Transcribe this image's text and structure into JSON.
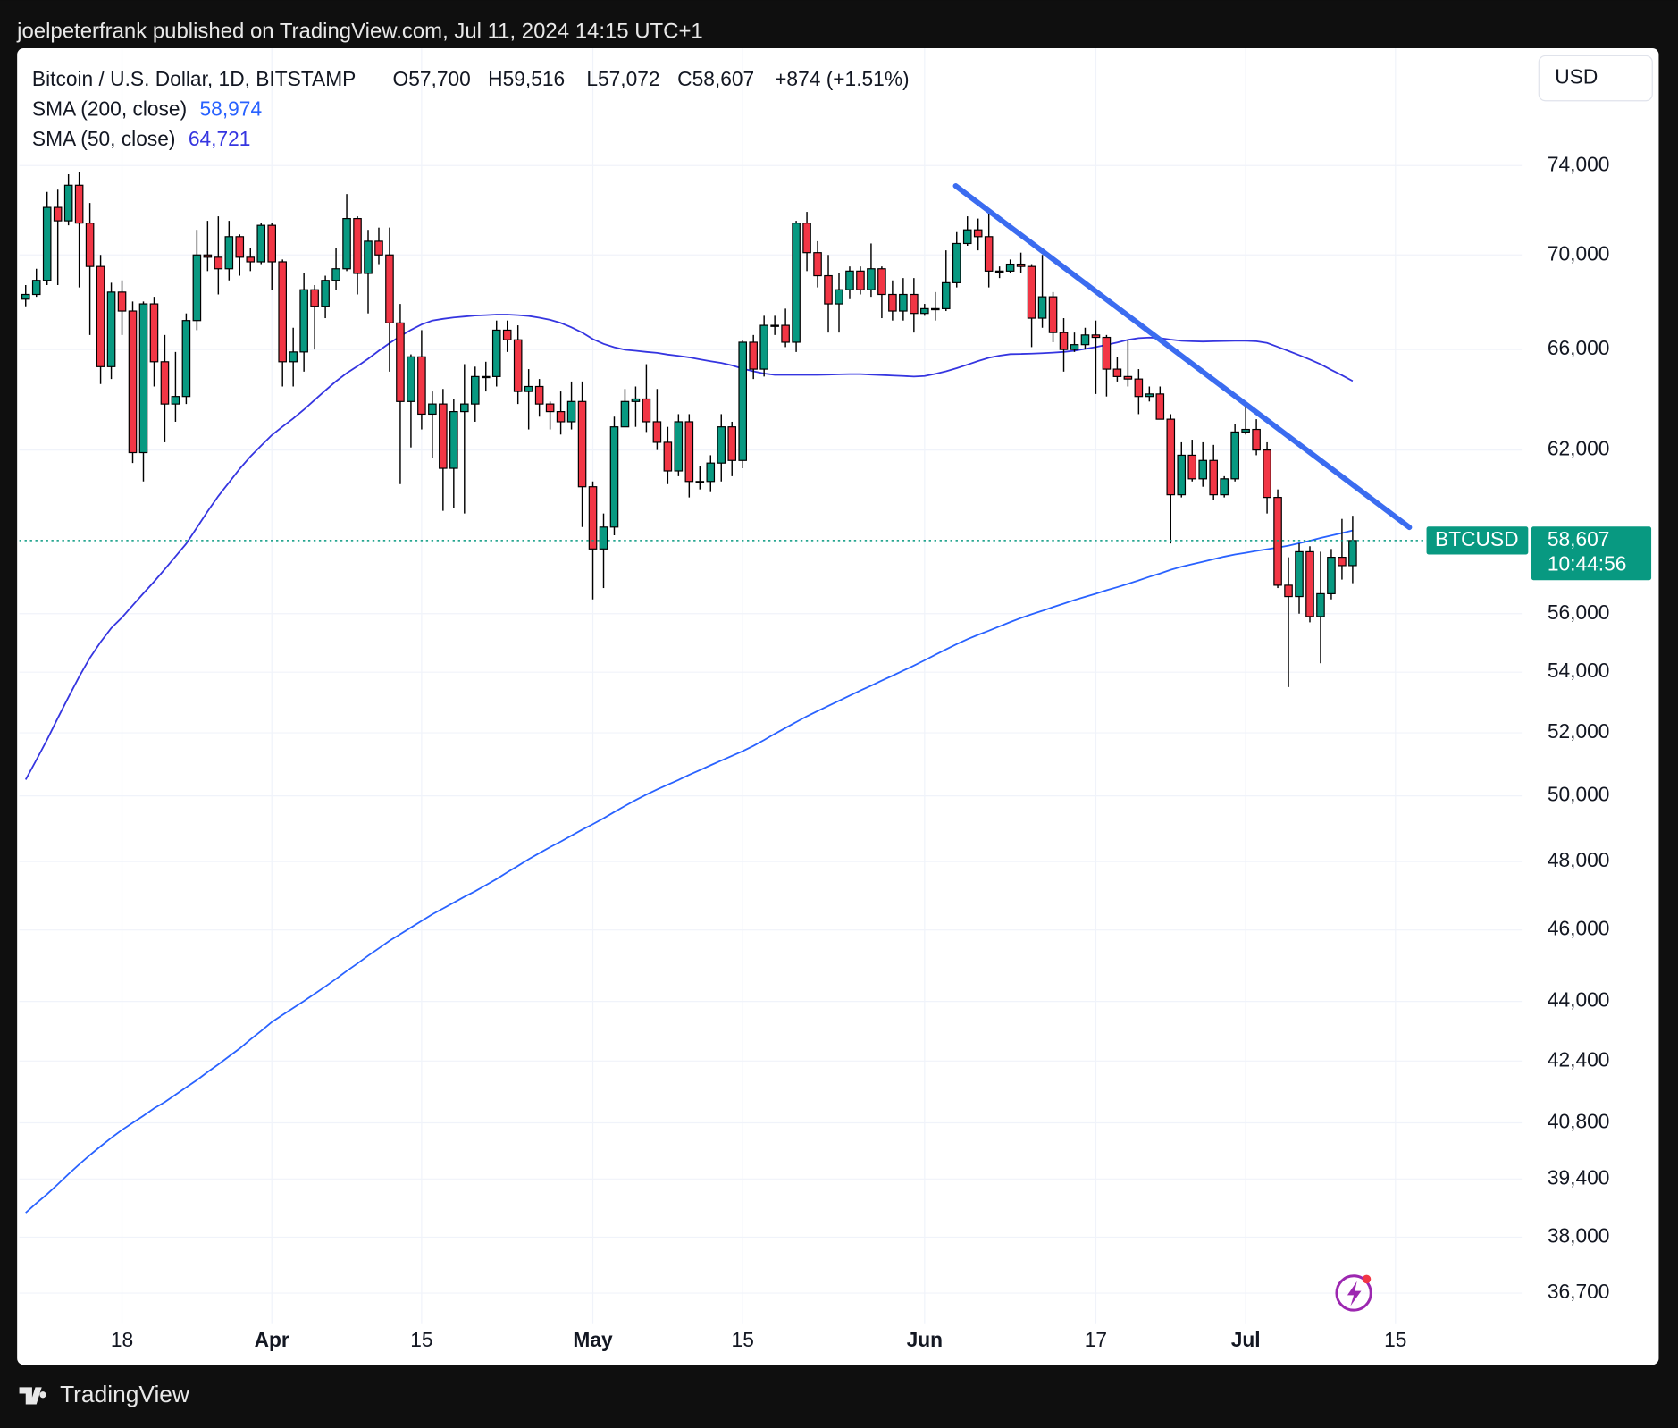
{
  "header": "joelpeterfrank published on TradingView.com, Jul 11, 2024 14:15 UTC+1",
  "footer": "TradingView",
  "chart_data": {
    "type": "candlestick",
    "title": "Bitcoin / U.S. Dollar, 1D, BITSTAMP",
    "ohlc_labels": [
      "O57,700",
      "H59,516",
      "L57,072",
      "C58,607",
      "+874 (+1.51%)"
    ],
    "currency": "USD",
    "symbol": "BTCUSD",
    "last_price": 58607,
    "last_price_label": "58,607",
    "countdown": "10:44:56",
    "up_color": "#089981",
    "down_color": "#f23645",
    "open": [
      68100,
      68300,
      68900,
      72100,
      71500,
      73100,
      71400,
      69500,
      65300,
      68400,
      67600,
      61900,
      67900,
      65500,
      63800,
      64100,
      67200,
      70000,
      69900,
      69400,
      70800,
      69900,
      69700,
      71300,
      69700,
      65500,
      65900,
      68500,
      67800,
      68900,
      69400,
      71600,
      69200,
      70600,
      70000,
      67100,
      63900,
      65700,
      63400,
      63800,
      61300,
      63500,
      63800,
      64900,
      64900,
      66800,
      66400,
      64300,
      64500,
      63800,
      63500,
      63100,
      63900,
      60600,
      58300,
      59100,
      62900,
      63900,
      64000,
      63100,
      62300,
      61200,
      63100,
      60800,
      60800,
      61500,
      62900,
      61600,
      66300,
      65200,
      67000,
      67000,
      66300,
      71400,
      70100,
      69100,
      67900,
      68500,
      69300,
      68500,
      69400,
      68300,
      67600,
      68300,
      67500,
      67700,
      67700,
      68800,
      70500,
      71100,
      70800,
      69300,
      69300,
      69600,
      69500,
      67300,
      68200,
      66700,
      66000,
      66200,
      66600,
      66500,
      65200,
      64900,
      64800,
      64100,
      64200,
      63200,
      60300,
      61800,
      60900,
      61600,
      60300,
      60900,
      62700,
      62800,
      62000,
      60200,
      57000,
      56600,
      58200,
      55900,
      56700,
      58000,
      57700
    ],
    "high": [
      68700,
      69400,
      72800,
      72900,
      73600,
      73700,
      72300,
      70000,
      68800,
      68900,
      68000,
      68000,
      68200,
      66600,
      65900,
      67500,
      71100,
      71500,
      71700,
      71500,
      70900,
      70300,
      71400,
      71400,
      69800,
      66900,
      69200,
      68700,
      69100,
      70300,
      72700,
      71700,
      71100,
      71200,
      71200,
      67900,
      65800,
      66800,
      64300,
      64400,
      64000,
      65400,
      65300,
      65500,
      67200,
      67200,
      67000,
      65200,
      64800,
      63900,
      64300,
      64700,
      64700,
      60800,
      59600,
      63300,
      64400,
      64500,
      65400,
      64400,
      62900,
      63400,
      63400,
      61400,
      61800,
      63400,
      63100,
      66400,
      66600,
      67400,
      67400,
      67700,
      71500,
      71900,
      70600,
      70000,
      69200,
      69500,
      69500,
      70500,
      69500,
      68900,
      69000,
      69000,
      67900,
      68400,
      70200,
      71000,
      71700,
      71600,
      72000,
      69500,
      69800,
      70100,
      69600,
      70000,
      68400,
      67300,
      66700,
      66900,
      67200,
      66600,
      65700,
      66400,
      65200,
      64500,
      64500,
      63400,
      62300,
      62400,
      62300,
      62200,
      61000,
      63000,
      63800,
      63200,
      62300,
      60500,
      58000,
      58500,
      58400,
      58200,
      58300,
      59400,
      59516
    ],
    "low": [
      67800,
      68200,
      68700,
      68700,
      71300,
      68600,
      66600,
      64600,
      64800,
      66600,
      61500,
      60800,
      64500,
      62300,
      63100,
      63800,
      66800,
      69300,
      68300,
      68900,
      69100,
      69300,
      69600,
      68500,
      64500,
      64500,
      65100,
      66000,
      67300,
      68500,
      69300,
      68300,
      67500,
      69600,
      65100,
      60700,
      62100,
      62800,
      61700,
      59700,
      59800,
      59600,
      63100,
      64300,
      64500,
      65900,
      63800,
      62800,
      63300,
      62800,
      62600,
      62800,
      59100,
      56500,
      56900,
      58800,
      62900,
      62900,
      62700,
      62000,
      60700,
      61000,
      60200,
      60500,
      60400,
      60800,
      61000,
      61300,
      64800,
      64900,
      66600,
      66100,
      65900,
      69300,
      68600,
      66700,
      66700,
      68100,
      68300,
      68200,
      67300,
      67200,
      67200,
      66700,
      67400,
      67200,
      67600,
      68600,
      70400,
      70200,
      68600,
      69000,
      69200,
      69200,
      66100,
      66900,
      66300,
      65100,
      65900,
      66000,
      64200,
      64100,
      64700,
      64500,
      63400,
      63900,
      63200,
      58500,
      60200,
      60800,
      60600,
      60100,
      60200,
      60800,
      62600,
      61800,
      59600,
      56900,
      53500,
      56000,
      55700,
      54300,
      56500,
      57200,
      57072
    ],
    "close": [
      68300,
      68900,
      72100,
      71500,
      73100,
      71400,
      69500,
      65300,
      68400,
      67600,
      61900,
      67900,
      65500,
      63800,
      64100,
      67200,
      70000,
      69900,
      69400,
      70800,
      69900,
      69700,
      71300,
      69700,
      65500,
      65900,
      68500,
      67800,
      68900,
      69400,
      71600,
      69200,
      70600,
      70000,
      67100,
      63900,
      65700,
      63400,
      63800,
      61300,
      63500,
      63800,
      64900,
      64900,
      66800,
      66400,
      64300,
      64500,
      63800,
      63500,
      63100,
      63900,
      60600,
      58300,
      59100,
      62900,
      63900,
      64000,
      63100,
      62300,
      61200,
      63100,
      60800,
      60800,
      61500,
      62900,
      61600,
      66300,
      65200,
      67000,
      67000,
      66300,
      71400,
      70100,
      69100,
      67900,
      68500,
      69300,
      68500,
      69400,
      68300,
      67600,
      68300,
      67500,
      67700,
      67700,
      68800,
      70500,
      71100,
      70800,
      69300,
      69300,
      69600,
      69500,
      67300,
      68200,
      66700,
      66000,
      66200,
      66600,
      66500,
      65200,
      64900,
      64800,
      64100,
      64200,
      63200,
      60300,
      61800,
      60900,
      61600,
      60300,
      60900,
      62700,
      62800,
      62000,
      60200,
      57000,
      56600,
      58200,
      55900,
      56700,
      58000,
      57700,
      58607
    ],
    "indicators": [
      {
        "name": "SMA (200, close)",
        "color": "#2962ff",
        "value_label": "58,974",
        "values": [
          38580,
          38810,
          39030,
          39270,
          39520,
          39760,
          39990,
          40210,
          40420,
          40620,
          40800,
          40980,
          41170,
          41330,
          41520,
          41710,
          41900,
          42110,
          42310,
          42520,
          42730,
          42970,
          43200,
          43440,
          43630,
          43820,
          44010,
          44210,
          44410,
          44620,
          44840,
          45050,
          45270,
          45480,
          45690,
          45880,
          46070,
          46260,
          46450,
          46620,
          46790,
          46960,
          47120,
          47300,
          47480,
          47680,
          47870,
          48070,
          48250,
          48430,
          48600,
          48780,
          48960,
          49130,
          49310,
          49500,
          49690,
          49870,
          50040,
          50200,
          50350,
          50500,
          50660,
          50810,
          50960,
          51110,
          51260,
          51410,
          51580,
          51770,
          51970,
          52160,
          52350,
          52540,
          52710,
          52880,
          53050,
          53220,
          53390,
          53550,
          53720,
          53880,
          54050,
          54220,
          54400,
          54590,
          54770,
          54950,
          55120,
          55270,
          55410,
          55560,
          55710,
          55850,
          55980,
          56100,
          56230,
          56350,
          56480,
          56590,
          56700,
          56820,
          56930,
          57050,
          57170,
          57300,
          57420,
          57550,
          57660,
          57750,
          57840,
          57930,
          58020,
          58100,
          58160,
          58230,
          58290,
          58350,
          58420,
          58510,
          58600,
          58700,
          58790,
          58880,
          58974
        ]
      },
      {
        "name": "SMA (50, close)",
        "color": "#3535e0",
        "value_label": "64,721",
        "values": [
          50510,
          51130,
          51780,
          52480,
          53170,
          53850,
          54480,
          55020,
          55500,
          55870,
          56290,
          56710,
          57130,
          57570,
          58030,
          58490,
          59080,
          59680,
          60250,
          60760,
          61280,
          61750,
          62170,
          62580,
          62910,
          63230,
          63580,
          63960,
          64340,
          64710,
          65040,
          65320,
          65620,
          65950,
          66260,
          66550,
          66810,
          67040,
          67200,
          67270,
          67330,
          67370,
          67410,
          67430,
          67450,
          67450,
          67430,
          67390,
          67320,
          67230,
          67100,
          66920,
          66700,
          66430,
          66230,
          66090,
          65990,
          65950,
          65900,
          65860,
          65790,
          65740,
          65680,
          65600,
          65520,
          65450,
          65350,
          65220,
          65110,
          65020,
          64970,
          64970,
          64970,
          64970,
          64970,
          64980,
          64990,
          65000,
          65000,
          64980,
          64960,
          64940,
          64920,
          64900,
          64920,
          65010,
          65110,
          65240,
          65380,
          65530,
          65660,
          65750,
          65810,
          65820,
          65830,
          65850,
          65870,
          65900,
          65950,
          66030,
          66100,
          66190,
          66290,
          66400,
          66470,
          66490,
          66470,
          66410,
          66360,
          66340,
          66330,
          66340,
          66350,
          66360,
          66360,
          66340,
          66270,
          66110,
          65940,
          65770,
          65590,
          65400,
          65170,
          64950,
          64721
        ]
      }
    ],
    "trendline": {
      "color": "#3b6cf0",
      "x": [
        86.9,
        129.3
      ],
      "y": [
        73070,
        59090
      ]
    },
    "log_scale": true,
    "grid": true,
    "xlim": [
      -0.6,
      139.8
    ],
    "ylim": [
      36000,
      79600
    ],
    "xticks": [
      {
        "value": 9,
        "label": "18"
      },
      {
        "value": 23,
        "label": "Apr"
      },
      {
        "value": 37,
        "label": "15"
      },
      {
        "value": 53,
        "label": "May"
      },
      {
        "value": 67,
        "label": "15"
      },
      {
        "value": 84,
        "label": "Jun"
      },
      {
        "value": 100,
        "label": "17"
      },
      {
        "value": 114,
        "label": "Jul"
      },
      {
        "value": 128,
        "label": "15"
      }
    ],
    "yticks": [
      {
        "value": 74000,
        "label": "74,000"
      },
      {
        "value": 70000,
        "label": "70,000"
      },
      {
        "value": 66000,
        "label": "66,000"
      },
      {
        "value": 62000,
        "label": "62,000"
      },
      {
        "value": 56000,
        "label": "56,000"
      },
      {
        "value": 54000,
        "label": "54,000"
      },
      {
        "value": 52000,
        "label": "52,000"
      },
      {
        "value": 50000,
        "label": "50,000"
      },
      {
        "value": 48000,
        "label": "48,000"
      },
      {
        "value": 46000,
        "label": "46,000"
      },
      {
        "value": 44000,
        "label": "44,000"
      },
      {
        "value": 42400,
        "label": "42,400"
      },
      {
        "value": 40800,
        "label": "40,800"
      },
      {
        "value": 39400,
        "label": "39,400"
      },
      {
        "value": 38000,
        "label": "38,000"
      },
      {
        "value": 36700,
        "label": "36,700"
      }
    ]
  }
}
